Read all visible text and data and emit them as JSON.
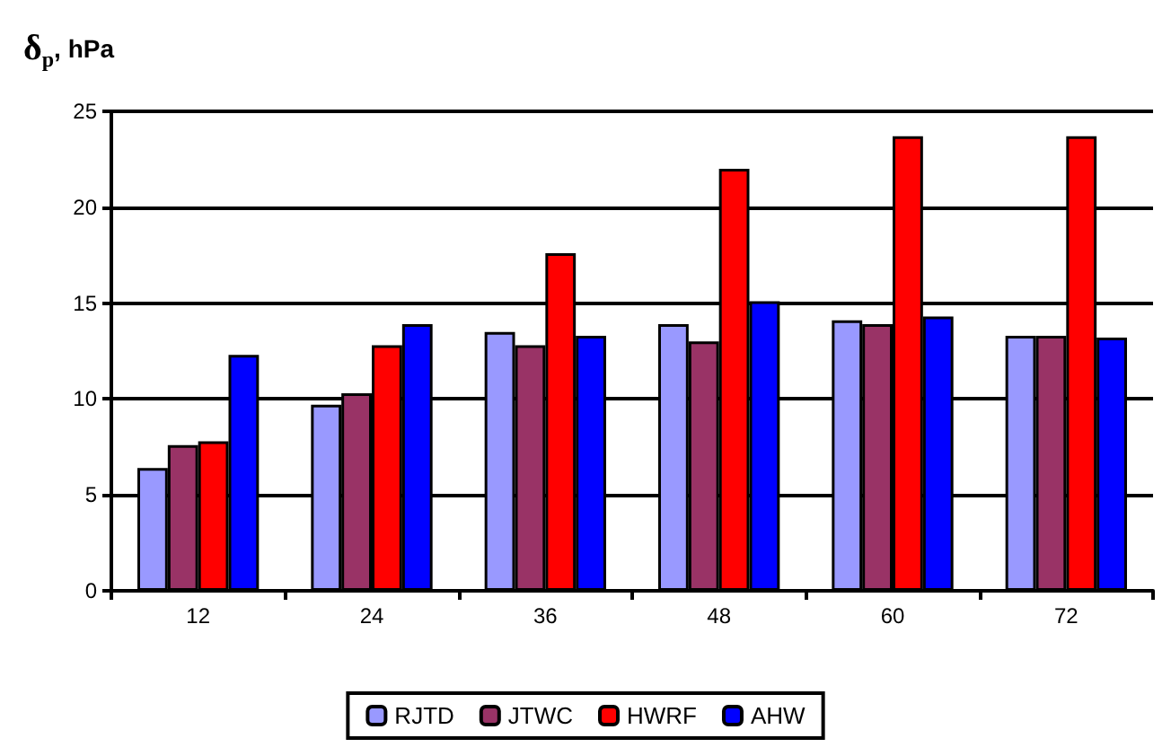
{
  "chart_data": {
    "type": "bar",
    "ylabel": "δ$_{p}$, hPa",
    "categories": [
      "12",
      "24",
      "36",
      "48",
      "60",
      "72"
    ],
    "series": [
      {
        "name": "RJTD",
        "color": "#9999ff",
        "values": [
          6.4,
          9.7,
          13.5,
          13.9,
          14.1,
          13.3
        ]
      },
      {
        "name": "JTWC",
        "color": "#993366",
        "values": [
          7.6,
          10.3,
          12.8,
          13.0,
          13.9,
          13.3
        ]
      },
      {
        "name": "HWRF",
        "color": "#ff0000",
        "values": [
          7.8,
          12.8,
          17.6,
          22.0,
          23.7,
          23.7
        ]
      },
      {
        "name": "AHW",
        "color": "#0000ff",
        "values": [
          12.3,
          13.9,
          13.3,
          15.1,
          14.3,
          13.2
        ]
      }
    ],
    "ylim": [
      0,
      25
    ],
    "yticks": [
      0,
      5,
      10,
      15,
      20,
      25
    ],
    "grid": "y",
    "legend": "bottom"
  }
}
